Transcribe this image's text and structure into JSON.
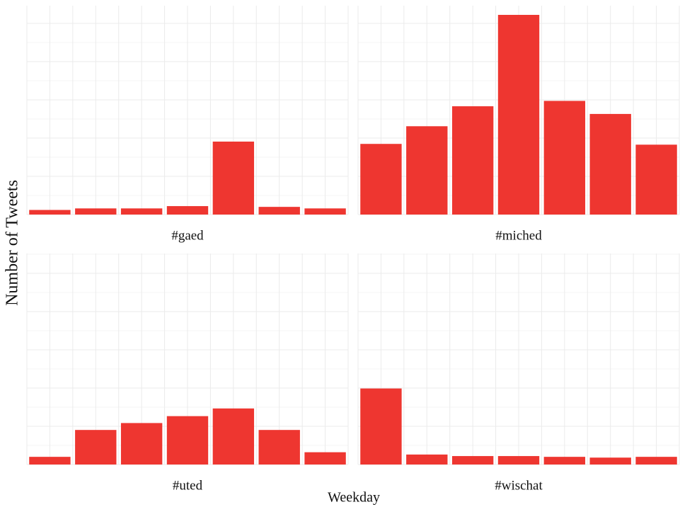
{
  "chart_data": {
    "type": "bar",
    "layout": "facet-grid 2x2",
    "xlabel": "Weekday",
    "ylabel": "Number of Tweets",
    "x_tick_labels_shown": false,
    "y_tick_labels_shown": false,
    "grid": true,
    "bar_color": "#EE3630",
    "grid_color": "#EBEBEB",
    "ylim": [
      0,
      26
    ],
    "y_unit_note": "",
    "categories": [
      "1",
      "2",
      "3",
      "4",
      "5",
      "6",
      "7"
    ],
    "panels": [
      {
        "label": "#gaed",
        "values": [
          0.6,
          0.8,
          0.8,
          1.1,
          9.5,
          1.0,
          0.8
        ]
      },
      {
        "label": "#miched",
        "values": [
          9.2,
          11.5,
          14.1,
          26.0,
          14.8,
          13.1,
          9.1
        ]
      },
      {
        "label": "#uted",
        "values": [
          1.0,
          4.5,
          5.4,
          6.3,
          7.3,
          4.5,
          1.6
        ]
      },
      {
        "label": "#wischat",
        "values": [
          9.9,
          1.3,
          1.1,
          1.1,
          1.0,
          0.9,
          1.0
        ]
      }
    ]
  }
}
